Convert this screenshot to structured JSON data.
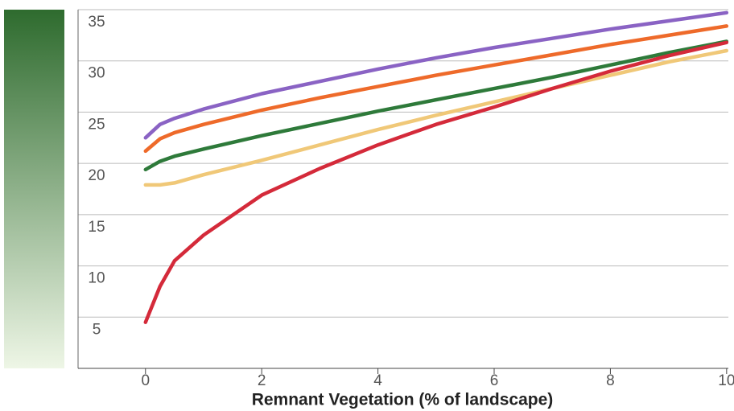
{
  "chart_data": {
    "type": "line",
    "xlabel": "Remnant Vegetation (% of landscape)",
    "x": [
      0,
      0.25,
      0.5,
      1,
      2,
      3,
      4,
      5,
      6,
      7,
      8,
      9,
      10
    ],
    "series": [
      {
        "color": "#f0c878",
        "values": [
          17.9,
          17.9,
          18.1,
          18.9,
          20.3,
          21.8,
          23.3,
          24.7,
          26.0,
          27.3,
          28.6,
          29.9,
          31.0
        ]
      },
      {
        "color": "#2e7a3a",
        "values": [
          19.4,
          20.2,
          20.7,
          21.4,
          22.7,
          23.9,
          25.1,
          26.2,
          27.3,
          28.4,
          29.6,
          30.8,
          31.9
        ]
      },
      {
        "color": "#ee6a2a",
        "values": [
          21.2,
          22.4,
          23.0,
          23.8,
          25.2,
          26.4,
          27.5,
          28.6,
          29.6,
          30.6,
          31.6,
          32.5,
          33.4
        ]
      },
      {
        "color": "#8a63c4",
        "values": [
          22.5,
          23.8,
          24.4,
          25.3,
          26.8,
          28.0,
          29.2,
          30.3,
          31.3,
          32.2,
          33.1,
          33.9,
          34.7
        ]
      },
      {
        "color": "#d42a3a",
        "values": [
          4.5,
          8.0,
          10.5,
          13.0,
          16.9,
          19.5,
          21.8,
          23.8,
          25.5,
          27.3,
          29.0,
          30.5,
          31.8
        ]
      }
    ],
    "xlim": [
      -1.16,
      10.03
    ],
    "ylim": [
      0,
      35
    ],
    "xticks": [
      0,
      2,
      4,
      6,
      8,
      10
    ],
    "yticks": [
      5,
      10,
      15,
      20,
      25,
      30,
      35
    ],
    "grid": true
  }
}
